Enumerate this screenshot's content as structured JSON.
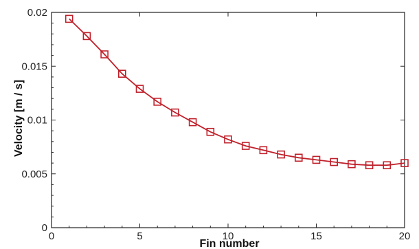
{
  "chart_data": {
    "type": "line",
    "xlabel": "Fin number",
    "ylabel": "Velocity [m / s]",
    "xlim": [
      0,
      20
    ],
    "ylim": [
      0,
      0.02
    ],
    "x_ticks": [
      "0",
      "5",
      "10",
      "15",
      "20"
    ],
    "y_ticks": [
      "0",
      "0.005",
      "0.01",
      "0.015",
      "0.02"
    ],
    "grid": false,
    "legend": "none",
    "marker": "square",
    "series_color": "#c0202a",
    "series": [
      {
        "x": [
          1,
          2,
          3,
          4,
          5,
          6,
          7,
          8,
          9,
          10,
          11,
          12,
          13,
          14,
          15,
          16,
          17,
          18,
          19,
          20
        ],
        "values": [
          0.0194,
          0.0178,
          0.0161,
          0.0143,
          0.0129,
          0.0117,
          0.0107,
          0.0098,
          0.0089,
          0.0082,
          0.0076,
          0.0072,
          0.0068,
          0.0065,
          0.0063,
          0.0061,
          0.0059,
          0.0058,
          0.0058,
          0.006
        ]
      }
    ]
  }
}
